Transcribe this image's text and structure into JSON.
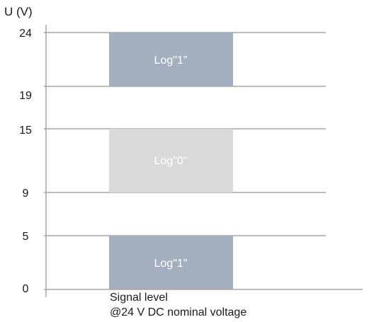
{
  "axis": {
    "y_title": "U (V)",
    "ticks": [
      "24",
      "19",
      "15",
      "9",
      "5",
      "0"
    ]
  },
  "bands": [
    {
      "label": "Log\"1\"",
      "from": 19,
      "to": 24,
      "color": "#a3afbe"
    },
    {
      "label": "Log\"0\"",
      "from": 9,
      "to": 15,
      "color": "#d9d9d9"
    },
    {
      "label": "Log\"1\"",
      "from": 0,
      "to": 5,
      "color": "#a3afbe"
    }
  ],
  "caption": {
    "line1": "Signal level",
    "line2": "@24 V DC nominal voltage"
  },
  "colors": {
    "gridline": "#a6a6a6",
    "axis": "#a6a6a6",
    "text": "#1a1a1a",
    "band_text": "#ffffff"
  }
}
